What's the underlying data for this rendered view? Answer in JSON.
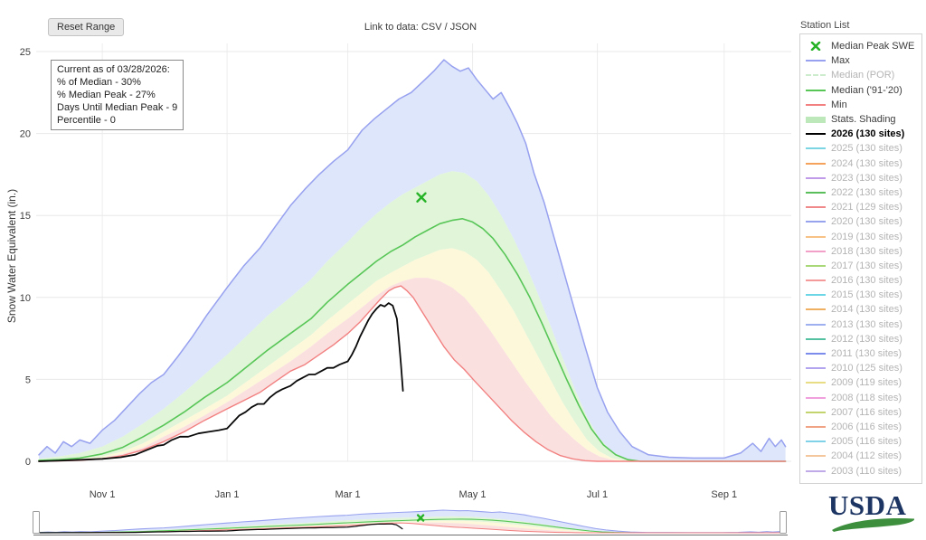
{
  "header": {
    "reset_button": "Reset Range",
    "link_label": "Link to data:",
    "csv_link": "CSV",
    "separator": "/",
    "json_link": "JSON"
  },
  "info_box": {
    "lines": [
      "Current as of 03/28/2026:",
      "% of Median - 30%",
      "% Median Peak - 27%",
      "Days Until Median Peak - 9",
      "Percentile - 0"
    ]
  },
  "y_axis_label": "Snow Water Equivalent (in.)",
  "footer": {
    "logo_text": "USDA"
  },
  "legend": {
    "title": "Station List",
    "items": [
      {
        "label": "Median Peak SWE",
        "swatch": "marker-x",
        "color": "#27b327",
        "muted": false,
        "bold": false
      },
      {
        "label": "Max",
        "swatch": "line",
        "color": "#97a1ef",
        "muted": false,
        "bold": false
      },
      {
        "label": "Median (POR)",
        "swatch": "dash",
        "color": "#cdeccd",
        "muted": true,
        "bold": false
      },
      {
        "label": "Median ('91-'20)",
        "swatch": "line",
        "color": "#57c657",
        "muted": false,
        "bold": false
      },
      {
        "label": "Min",
        "swatch": "line",
        "color": "#f28080",
        "muted": false,
        "bold": false
      },
      {
        "label": "Stats. Shading",
        "swatch": "thick",
        "color": "#bce8ba",
        "muted": false,
        "bold": false
      },
      {
        "label": "2026 (130 sites)",
        "swatch": "line",
        "color": "#000000",
        "muted": false,
        "bold": true
      },
      {
        "label": "2025 (130 sites)",
        "swatch": "line",
        "color": "#7cd5e3",
        "muted": true,
        "bold": false
      },
      {
        "label": "2024 (130 sites)",
        "swatch": "line",
        "color": "#f5a35c",
        "muted": true,
        "bold": false
      },
      {
        "label": "2023 (130 sites)",
        "swatch": "line",
        "color": "#bf9bea",
        "muted": true,
        "bold": false
      },
      {
        "label": "2022 (130 sites)",
        "swatch": "line",
        "color": "#5abf5a",
        "muted": true,
        "bold": false
      },
      {
        "label": "2021 (129 sites)",
        "swatch": "line",
        "color": "#f08a8a",
        "muted": true,
        "bold": false
      },
      {
        "label": "2020 (130 sites)",
        "swatch": "line",
        "color": "#98a3ee",
        "muted": true,
        "bold": false
      },
      {
        "label": "2019 (130 sites)",
        "swatch": "line",
        "color": "#f8c185",
        "muted": true,
        "bold": false
      },
      {
        "label": "2018 (130 sites)",
        "swatch": "line",
        "color": "#f2a0c8",
        "muted": true,
        "bold": false
      },
      {
        "label": "2017 (130 sites)",
        "swatch": "line",
        "color": "#a8d878",
        "muted": true,
        "bold": false
      },
      {
        "label": "2016 (130 sites)",
        "swatch": "line",
        "color": "#f59a9a",
        "muted": true,
        "bold": false
      },
      {
        "label": "2015 (130 sites)",
        "swatch": "line",
        "color": "#6cd6e6",
        "muted": true,
        "bold": false
      },
      {
        "label": "2014 (130 sites)",
        "swatch": "line",
        "color": "#efb161",
        "muted": true,
        "bold": false
      },
      {
        "label": "2013 (130 sites)",
        "swatch": "line",
        "color": "#9fb0f0",
        "muted": true,
        "bold": false
      },
      {
        "label": "2012 (130 sites)",
        "swatch": "line",
        "color": "#54c2a0",
        "muted": true,
        "bold": false
      },
      {
        "label": "2011 (130 sites)",
        "swatch": "line",
        "color": "#7c8cec",
        "muted": true,
        "bold": false
      },
      {
        "label": "2010 (125 sites)",
        "swatch": "line",
        "color": "#b2a4ee",
        "muted": true,
        "bold": false
      },
      {
        "label": "2009 (119 sites)",
        "swatch": "line",
        "color": "#e8dd84",
        "muted": true,
        "bold": false
      },
      {
        "label": "2008 (118 sites)",
        "swatch": "line",
        "color": "#f0a0dc",
        "muted": true,
        "bold": false
      },
      {
        "label": "2007 (116 sites)",
        "swatch": "line",
        "color": "#c3d46e",
        "muted": true,
        "bold": false
      },
      {
        "label": "2006 (116 sites)",
        "swatch": "line",
        "color": "#f0a385",
        "muted": true,
        "bold": false
      },
      {
        "label": "2005 (116 sites)",
        "swatch": "line",
        "color": "#7fd2e8",
        "muted": true,
        "bold": false
      },
      {
        "label": "2004 (112 sites)",
        "swatch": "line",
        "color": "#f4c89c",
        "muted": true,
        "bold": false
      },
      {
        "label": "2003 (110 sites)",
        "swatch": "line",
        "color": "#c0abe8",
        "muted": true,
        "bold": false
      }
    ]
  },
  "chart_data": {
    "type": "line",
    "title": "",
    "xlabel": "",
    "ylabel": "Snow Water Equivalent (in.)",
    "x_unit": "days since Oct 1 (water year)",
    "xlim": [
      0,
      368
    ],
    "ylim": [
      0,
      25
    ],
    "grid": true,
    "legend_position": "right",
    "y_ticks": [
      0,
      5,
      10,
      15,
      20,
      25
    ],
    "x_ticks": [
      {
        "day": 31,
        "label": "Nov 1"
      },
      {
        "day": 92,
        "label": "Jan 1"
      },
      {
        "day": 151,
        "label": "Mar 1"
      },
      {
        "day": 212,
        "label": "May 1"
      },
      {
        "day": 273,
        "label": "Jul 1"
      },
      {
        "day": 335,
        "label": "Sep 1"
      }
    ],
    "median_peak_marker": {
      "day": 187,
      "value": 16.1,
      "color": "#27b327"
    },
    "series": [
      {
        "id": "max",
        "name": "Max",
        "color": "#97a1ef",
        "width": 1.5,
        "x": [
          0,
          4,
          8,
          12,
          16,
          20,
          25,
          31,
          37,
          43,
          49,
          55,
          61,
          68,
          75,
          82,
          92,
          100,
          108,
          116,
          123,
          130,
          137,
          144,
          151,
          158,
          164,
          170,
          176,
          182,
          188,
          193,
          198,
          202,
          206,
          210,
          214,
          218,
          222,
          226,
          230,
          234,
          238,
          242,
          247,
          252,
          257,
          262,
          267,
          273,
          278,
          284,
          290,
          298,
          308,
          320,
          335,
          343,
          349,
          353,
          357,
          360,
          363,
          365
        ],
        "y": [
          0.4,
          0.9,
          0.5,
          1.2,
          0.9,
          1.3,
          1.1,
          1.9,
          2.5,
          3.3,
          4.1,
          4.8,
          5.3,
          6.4,
          7.6,
          8.9,
          10.6,
          11.9,
          13.0,
          14.4,
          15.6,
          16.6,
          17.5,
          18.3,
          19.0,
          20.2,
          20.9,
          21.5,
          22.1,
          22.5,
          23.2,
          23.8,
          24.5,
          24.1,
          23.8,
          24.0,
          23.3,
          22.7,
          22.1,
          22.5,
          21.6,
          20.6,
          19.4,
          17.6,
          15.8,
          13.6,
          11.4,
          9.2,
          7.0,
          4.5,
          3.0,
          1.8,
          0.9,
          0.4,
          0.25,
          0.2,
          0.2,
          0.5,
          1.1,
          0.6,
          1.4,
          0.9,
          1.3,
          0.9
        ]
      },
      {
        "id": "median-91-20",
        "name": "Median ('91-'20)",
        "color": "#57c657",
        "width": 1.6,
        "x": [
          0,
          10,
          20,
          31,
          41,
          51,
          61,
          71,
          81,
          92,
          102,
          112,
          123,
          133,
          141,
          151,
          158,
          165,
          172,
          178,
          184,
          190,
          196,
          202,
          207,
          212,
          217,
          222,
          228,
          234,
          240,
          246,
          252,
          258,
          264,
          270,
          276,
          282,
          288,
          294,
          365
        ],
        "y": [
          0.05,
          0.1,
          0.2,
          0.45,
          0.85,
          1.5,
          2.2,
          3.0,
          3.9,
          4.8,
          5.8,
          6.8,
          7.8,
          8.7,
          9.7,
          10.8,
          11.5,
          12.2,
          12.8,
          13.2,
          13.7,
          14.1,
          14.5,
          14.7,
          14.8,
          14.6,
          14.2,
          13.6,
          12.6,
          11.4,
          10.0,
          8.4,
          6.7,
          5.0,
          3.4,
          2.0,
          1.0,
          0.4,
          0.1,
          0,
          0
        ]
      },
      {
        "id": "min",
        "name": "Min",
        "color": "#f28080",
        "width": 1.4,
        "x": [
          0,
          10,
          20,
          31,
          41,
          51,
          61,
          71,
          81,
          92,
          100,
          108,
          116,
          123,
          130,
          137,
          144,
          151,
          157,
          162,
          167,
          171,
          174,
          177,
          180,
          183,
          186,
          190,
          194,
          198,
          203,
          208,
          213,
          219,
          225,
          231,
          237,
          243,
          249,
          255,
          261,
          267,
          273,
          365
        ],
        "y": [
          0,
          0.02,
          0.06,
          0.15,
          0.35,
          0.7,
          1.2,
          1.8,
          2.5,
          3.2,
          3.7,
          4.2,
          4.9,
          5.5,
          5.9,
          6.5,
          7.1,
          7.8,
          8.5,
          9.2,
          9.9,
          10.4,
          10.6,
          10.7,
          10.4,
          10.0,
          9.4,
          8.6,
          7.8,
          7.0,
          6.2,
          5.6,
          4.9,
          4.1,
          3.3,
          2.5,
          1.8,
          1.2,
          0.7,
          0.35,
          0.15,
          0.04,
          0,
          0
        ]
      },
      {
        "id": "year-2026",
        "name": "2026 (130 sites)",
        "color": "#0a0a0a",
        "width": 1.8,
        "x": [
          0,
          12,
          22,
          31,
          40,
          47,
          53,
          58,
          61,
          65,
          69,
          73,
          78,
          83,
          88,
          92,
          95,
          98,
          101,
          104,
          107,
          110,
          113,
          116,
          119,
          123,
          126,
          129,
          132,
          135,
          138,
          141,
          144,
          147,
          151,
          153,
          155,
          157,
          159,
          161,
          163,
          165,
          167,
          169,
          171,
          173,
          175,
          176,
          177,
          178
        ],
        "y": [
          0,
          0.05,
          0.1,
          0.15,
          0.25,
          0.4,
          0.7,
          0.95,
          1.0,
          1.3,
          1.5,
          1.5,
          1.7,
          1.8,
          1.9,
          2.0,
          2.4,
          2.8,
          3.0,
          3.3,
          3.5,
          3.5,
          3.9,
          4.2,
          4.4,
          4.6,
          4.9,
          5.1,
          5.3,
          5.3,
          5.5,
          5.7,
          5.7,
          5.9,
          6.1,
          6.5,
          7.0,
          7.6,
          8.1,
          8.6,
          9.0,
          9.3,
          9.55,
          9.45,
          9.65,
          9.5,
          8.7,
          7.4,
          5.9,
          4.3
        ]
      }
    ],
    "percentile_lines": [
      {
        "name": "p70",
        "x": [
          0,
          10,
          20,
          31,
          41,
          51,
          61,
          71,
          81,
          92,
          102,
          112,
          123,
          133,
          141,
          151,
          158,
          165,
          172,
          178,
          184,
          190,
          196,
          202,
          208,
          214,
          220,
          226,
          232,
          238,
          244,
          250,
          256,
          262,
          268,
          274,
          280,
          286,
          292,
          365
        ],
        "y": [
          0.15,
          0.3,
          0.5,
          0.9,
          1.5,
          2.3,
          3.2,
          4.2,
          5.3,
          6.5,
          7.7,
          8.9,
          10.0,
          11.1,
          12.2,
          13.4,
          14.3,
          15.1,
          15.8,
          16.3,
          16.7,
          17.1,
          17.5,
          17.7,
          17.6,
          17.1,
          16.2,
          15.0,
          13.6,
          12.0,
          10.2,
          8.3,
          6.3,
          4.4,
          2.7,
          1.4,
          0.6,
          0.2,
          0,
          0
        ]
      },
      {
        "name": "p30",
        "x": [
          0,
          10,
          20,
          31,
          41,
          51,
          61,
          71,
          81,
          92,
          102,
          112,
          123,
          133,
          141,
          151,
          158,
          165,
          172,
          178,
          184,
          190,
          196,
          202,
          208,
          214,
          220,
          226,
          232,
          238,
          244,
          250,
          256,
          262,
          268,
          274,
          280,
          286,
          292,
          365
        ],
        "y": [
          0.03,
          0.07,
          0.15,
          0.3,
          0.6,
          1.1,
          1.8,
          2.5,
          3.2,
          4.0,
          4.9,
          5.8,
          6.8,
          7.7,
          8.6,
          9.6,
          10.3,
          11.0,
          11.5,
          11.9,
          12.3,
          12.6,
          12.9,
          13.0,
          12.8,
          12.3,
          11.5,
          10.4,
          9.2,
          7.8,
          6.4,
          5.0,
          3.6,
          2.4,
          1.3,
          0.6,
          0.2,
          0.05,
          0,
          0
        ]
      },
      {
        "name": "p10",
        "x": [
          0,
          10,
          20,
          31,
          41,
          51,
          61,
          71,
          81,
          92,
          102,
          112,
          123,
          133,
          141,
          151,
          158,
          165,
          172,
          178,
          184,
          190,
          196,
          202,
          208,
          214,
          220,
          226,
          232,
          238,
          244,
          250,
          256,
          262,
          268,
          274,
          280,
          286,
          292,
          365
        ],
        "y": [
          0,
          0.04,
          0.1,
          0.22,
          0.45,
          0.85,
          1.5,
          2.1,
          2.8,
          3.6,
          4.4,
          5.2,
          6.1,
          7.0,
          7.8,
          8.7,
          9.4,
          10.1,
          10.7,
          11.0,
          11.2,
          11.2,
          11.0,
          10.6,
          10.0,
          9.1,
          8.1,
          7.0,
          5.9,
          4.8,
          3.8,
          2.8,
          2.0,
          1.3,
          0.7,
          0.3,
          0.1,
          0,
          0,
          0
        ]
      }
    ],
    "bands": [
      {
        "name": "max-to-p70",
        "upper": "Max",
        "lower": "p70",
        "fill": "#dde6fa"
      },
      {
        "name": "p70-to-p30",
        "upper": "p70",
        "lower": "p30",
        "fill": "#e1f5d9"
      },
      {
        "name": "p30-to-p10",
        "upper": "p30",
        "lower": "p10",
        "fill": "#fcf8d9"
      },
      {
        "name": "p10-to-min",
        "upper": "p10",
        "lower": "Min",
        "fill": "#fbe0e0"
      }
    ]
  }
}
